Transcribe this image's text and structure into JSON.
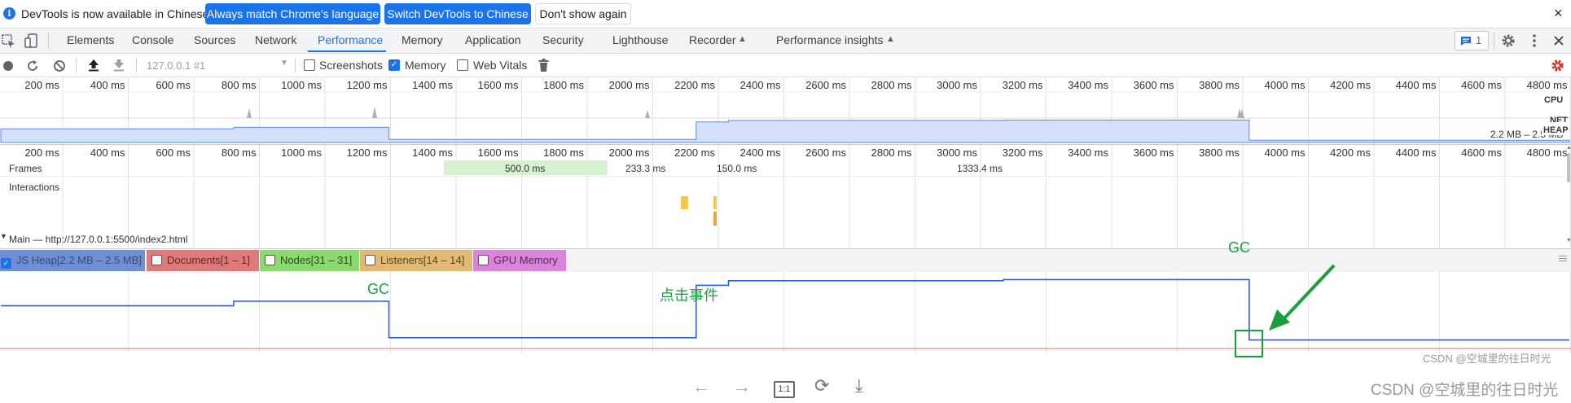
{
  "infobar": {
    "message": "DevTools is now available in Chinese!",
    "btn_match": "Always match Chrome's language",
    "btn_switch": "Switch DevTools to Chinese",
    "btn_dont_show": "Don't show again",
    "close": "×"
  },
  "tabs": [
    "Elements",
    "Console",
    "Sources",
    "Network",
    "Performance",
    "Memory",
    "Application",
    "Security",
    "Lighthouse",
    "Recorder",
    "Performance insights"
  ],
  "active_tab": "Performance",
  "issues_count": "1",
  "toolbar": {
    "url_select": "127.0.0.1 #1",
    "screenshots_label": "Screenshots",
    "memory_label": "Memory",
    "web_vitals_label": "Web Vitals"
  },
  "ruler_ticks": [
    "200 ms",
    "400 ms",
    "600 ms",
    "800 ms",
    "1000 ms",
    "1200 ms",
    "1400 ms",
    "1600 ms",
    "1800 ms",
    "2000 ms",
    "2200 ms",
    "2400 ms",
    "2600 ms",
    "2800 ms",
    "3000 ms",
    "3200 ms",
    "3400 ms",
    "3600 ms",
    "3800 ms",
    "4000 ms",
    "4200 ms",
    "4400 ms",
    "4600 ms",
    "4800 ms"
  ],
  "overview": {
    "cpu_label": "CPU",
    "net_label": "NET",
    "heap_label": "HEAP",
    "heap_range": "2.2 MB – 2.5 MB"
  },
  "tracks": {
    "frames_label": "Frames",
    "frames": [
      "500.0 ms",
      "233.3 ms",
      "150.0 ms",
      "1333.4 ms"
    ],
    "interactions_label": "Interactions",
    "main_label": "Main — http://127.0.0.1:5500/index2.html"
  },
  "counters": [
    {
      "label": "JS Heap[2.2 MB – 2.5 MB]",
      "checked": true,
      "color": "#6e8fd6"
    },
    {
      "label": "Documents[1 – 1]",
      "checked": false,
      "color": "#e07a7a"
    },
    {
      "label": "Nodes[31 – 31]",
      "checked": false,
      "color": "#8cd96f"
    },
    {
      "label": "Listeners[14 – 14]",
      "checked": false,
      "color": "#e2ba74"
    },
    {
      "label": "GPU Memory",
      "checked": false,
      "color": "#d985d9"
    }
  ],
  "annotations": {
    "gc_1": "GC",
    "click_event": "点击事件",
    "gc_2": "GC"
  },
  "watermark_small": "CSDN @空城里的往日时光",
  "watermark_large": "CSDN @空城里的往日时光",
  "bottom_controls": {
    "back": "←",
    "forward": "→",
    "actual_size": "1:1",
    "rotate": "⟳",
    "download": "⤓"
  },
  "chart_data": {
    "type": "line",
    "series": [
      {
        "name": "JS Heap",
        "x": [
          0,
          720,
          720,
          1200,
          1200,
          2150,
          2150,
          2250,
          2250,
          3100,
          3100,
          3860,
          3860,
          4850
        ],
        "values": [
          2.38,
          2.38,
          2.4,
          2.4,
          2.24,
          2.24,
          2.47,
          2.47,
          2.49,
          2.49,
          2.495,
          2.495,
          2.23,
          2.23
        ]
      }
    ],
    "xlabel": "",
    "ylabel": ""
  }
}
